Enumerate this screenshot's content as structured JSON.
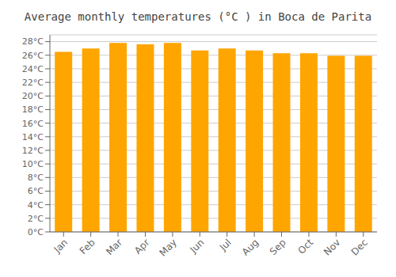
{
  "chart_data": {
    "type": "bar",
    "title": "Average monthly temperatures (°C ) in Boca de Parita",
    "categories": [
      "Jan",
      "Feb",
      "Mar",
      "Apr",
      "May",
      "Jun",
      "Jul",
      "Aug",
      "Sep",
      "Oct",
      "Nov",
      "Dec"
    ],
    "values": [
      26.5,
      27.0,
      27.8,
      27.6,
      27.8,
      26.7,
      27.0,
      26.7,
      26.3,
      26.3,
      25.9,
      25.9
    ],
    "color": "#FFA500",
    "ylim": [
      0,
      29
    ],
    "yticks": [
      {
        "value": 0,
        "label": "0°C"
      },
      {
        "value": 2,
        "label": "2°C"
      },
      {
        "value": 4,
        "label": "4°C"
      },
      {
        "value": 6,
        "label": "6°C"
      },
      {
        "value": 8,
        "label": "8°C"
      },
      {
        "value": 10,
        "label": "10°C"
      },
      {
        "value": 12,
        "label": "12°C"
      },
      {
        "value": 14,
        "label": "14°C"
      },
      {
        "value": 16,
        "label": "16°C"
      },
      {
        "value": 18,
        "label": "18°C"
      },
      {
        "value": 20,
        "label": "20°C"
      },
      {
        "value": 22,
        "label": "22°C"
      },
      {
        "value": 24,
        "label": "24°C"
      },
      {
        "value": 26,
        "label": "26°C"
      },
      {
        "value": 28,
        "label": "28°C"
      }
    ],
    "grid": true
  }
}
